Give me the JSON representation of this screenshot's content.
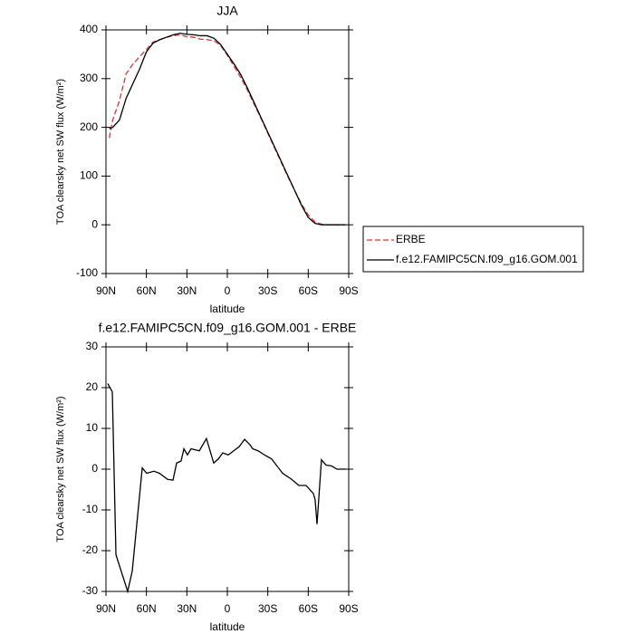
{
  "chart_data": [
    {
      "type": "line",
      "title": "JJA",
      "x_label": "latitude",
      "y_label": "TOA clearsky net SW flux (W/m²)",
      "x": [
        87.5,
        85,
        80,
        75,
        70,
        65,
        60,
        55,
        50,
        45,
        40,
        35,
        30,
        25,
        20,
        15,
        10,
        5,
        0,
        -5,
        -10,
        -15,
        -20,
        -25,
        -30,
        -35,
        -40,
        -45,
        -50,
        -55,
        -60,
        -65,
        -70,
        -75,
        -80,
        -85,
        -87.5
      ],
      "series": [
        {
          "name": "ERBE",
          "color": "#e03030",
          "dash": "dashed",
          "values": [
            178,
            215,
            255,
            310,
            330,
            345,
            360,
            375,
            380,
            385,
            388,
            390,
            386,
            385,
            381,
            380,
            378,
            368,
            348,
            325,
            302,
            276,
            247,
            218,
            188,
            158,
            128,
            98,
            70,
            43,
            20,
            6,
            1,
            0,
            0,
            0,
            0
          ]
        },
        {
          "name": "f.e12.FAMIPC5CN.f09_g16.GOM.001",
          "color": "#000000",
          "dash": "solid",
          "values": [
            197,
            200,
            215,
            260,
            290,
            320,
            355,
            373,
            380,
            385,
            390,
            393,
            391,
            390,
            388,
            388,
            383,
            370,
            350,
            330,
            308,
            280,
            250,
            220,
            190,
            160,
            130,
            100,
            70,
            40,
            15,
            3,
            0,
            0,
            0,
            0,
            0
          ]
        }
      ],
      "xlim": [
        90,
        -90
      ],
      "xticks": [
        {
          "value": 90,
          "label": "90N"
        },
        {
          "value": 60,
          "label": "60N"
        },
        {
          "value": 30,
          "label": "30N"
        },
        0,
        {
          "value": -30,
          "label": "30S"
        },
        {
          "value": -60,
          "label": "60S"
        },
        {
          "value": -90,
          "label": "90S"
        }
      ],
      "ylim": [
        -100,
        400
      ],
      "yticks": [
        -100,
        0,
        100,
        200,
        300,
        400
      ],
      "legend": "right"
    },
    {
      "type": "line",
      "title": "f.e12.FAMIPC5CN.f09_g16.GOM.001 - ERBE",
      "x_label": "latitude",
      "y_label": "TOA clearsky net SW flux (W/m²)",
      "x": [
        88.7,
        85.3,
        82.6,
        73.9,
        70.5,
        63.1,
        59.8,
        54.4,
        50.4,
        44.3,
        40.3,
        37.6,
        34.3,
        32.2,
        29.6,
        26.9,
        20.8,
        15.5,
        10.1,
        6.7,
        3.4,
        -0.7,
        -4.7,
        -8.7,
        -12.8,
        -16.8,
        -18.8,
        -22.8,
        -27.5,
        -32.9,
        -36.3,
        -41,
        -47.7,
        -53,
        -58.4,
        -63.8,
        -65.1,
        -66.5,
        -69.8,
        -73.2,
        -77.2,
        -81.3,
        -88
      ],
      "series": [
        {
          "color": "#000000",
          "dash": "solid",
          "values": [
            21,
            19,
            -21,
            -30,
            -25,
            0.3,
            -1,
            -0.5,
            -1,
            -2.5,
            -2.7,
            1.5,
            2,
            5,
            3.5,
            5,
            4.5,
            7.5,
            1.5,
            2.5,
            4,
            3.5,
            4.5,
            5.5,
            7.3,
            6,
            5,
            4.5,
            3.5,
            2.5,
            1,
            -1,
            -2.5,
            -4,
            -4,
            -6,
            -7.5,
            -13.5,
            2.3,
            1,
            0.8,
            0,
            0
          ]
        }
      ],
      "xlim": [
        90,
        -90
      ],
      "xticks": [
        {
          "value": 90,
          "label": "90N"
        },
        {
          "value": 60,
          "label": "60N"
        },
        {
          "value": 30,
          "label": "30N"
        },
        0,
        {
          "value": -30,
          "label": "30S"
        },
        {
          "value": -60,
          "label": "60S"
        },
        {
          "value": -90,
          "label": "90S"
        }
      ],
      "ylim": [
        -30,
        30
      ],
      "yticks": [
        -30,
        -20,
        -10,
        0,
        10,
        20,
        30
      ]
    }
  ]
}
